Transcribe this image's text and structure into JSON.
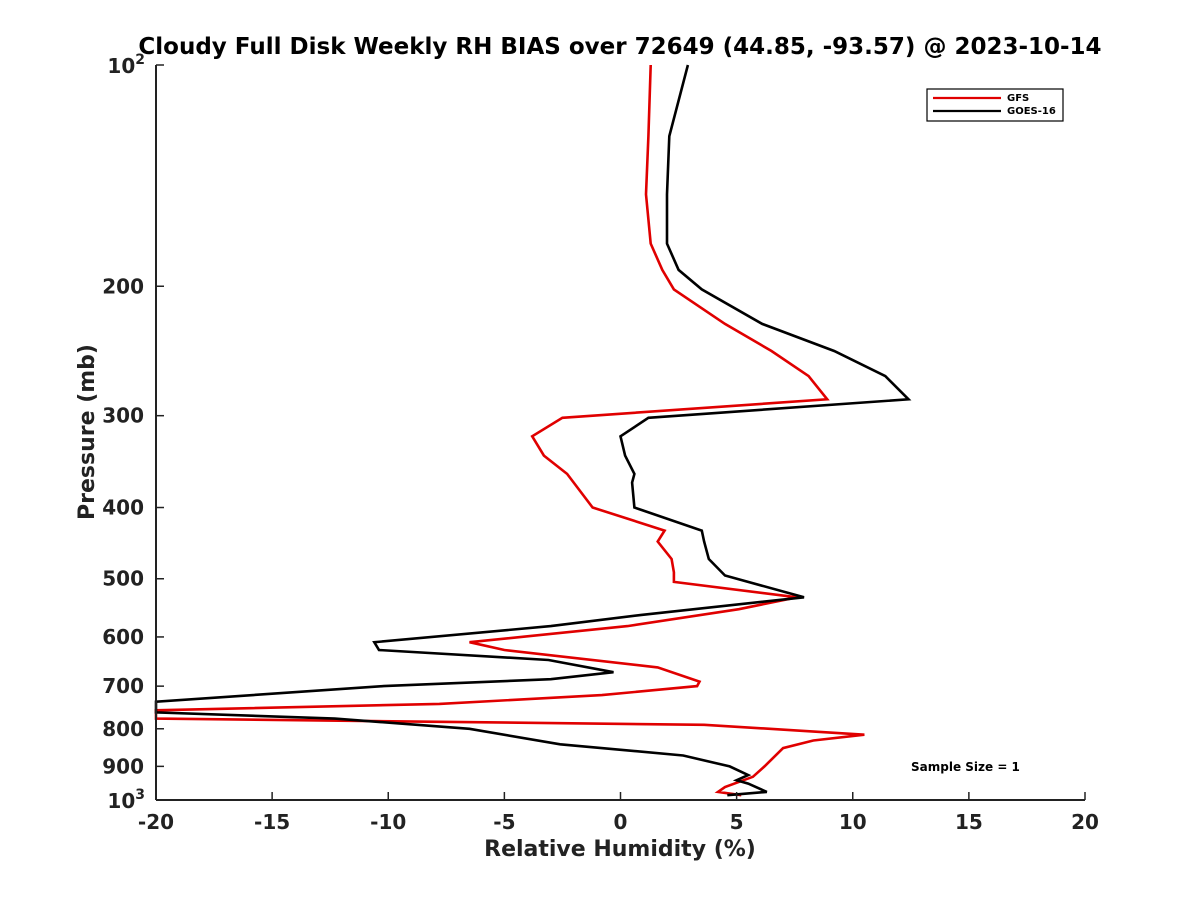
{
  "chart_data": {
    "type": "line",
    "title": "Cloudy Full Disk Weekly RH BIAS over 72649 (44.85, -93.57) @ 2023-10-14",
    "xlabel": "Relative Humidity (%)",
    "ylabel": "Pressure (mb)",
    "xlim": [
      -20,
      20
    ],
    "ylim": [
      100,
      1000
    ],
    "y_scale": "log",
    "y_reversed": true,
    "x_ticks": [
      -20,
      -15,
      -10,
      -5,
      0,
      5,
      10,
      15,
      20
    ],
    "x_tick_labels": [
      "-20",
      "-15",
      "-10",
      "-5",
      "0",
      "5",
      "10",
      "15",
      "20"
    ],
    "y_ticks": [
      {
        "value": 100,
        "base": "10",
        "exp": "2",
        "label": ""
      },
      {
        "value": 200,
        "label": "200"
      },
      {
        "value": 300,
        "label": "300"
      },
      {
        "value": 400,
        "label": "400"
      },
      {
        "value": 500,
        "label": "500"
      },
      {
        "value": 600,
        "label": "600"
      },
      {
        "value": 700,
        "label": "700"
      },
      {
        "value": 800,
        "label": "800"
      },
      {
        "value": 900,
        "label": "900"
      },
      {
        "value": 1000,
        "base": "10",
        "exp": "3",
        "label": ""
      }
    ],
    "grid": false,
    "legend_position": "top-right",
    "annotation": "Sample Size = 1",
    "series": [
      {
        "name": "GFS",
        "color": "#e00000",
        "points": [
          [
            1.3,
            100
          ],
          [
            1.2,
            125
          ],
          [
            1.1,
            150
          ],
          [
            1.3,
            175
          ],
          [
            1.8,
            190
          ],
          [
            2.3,
            202
          ],
          [
            4.5,
            225
          ],
          [
            6.5,
            245
          ],
          [
            8.1,
            265
          ],
          [
            8.9,
            285
          ],
          [
            -2.5,
            302
          ],
          [
            -3.8,
            320
          ],
          [
            -3.3,
            340
          ],
          [
            -2.3,
            360
          ],
          [
            -1.2,
            400
          ],
          [
            1.9,
            430
          ],
          [
            1.6,
            445
          ],
          [
            2.2,
            470
          ],
          [
            2.3,
            490
          ],
          [
            2.3,
            505
          ],
          [
            7.6,
            530
          ],
          [
            5.1,
            550
          ],
          [
            0.3,
            580
          ],
          [
            -6.5,
            610
          ],
          [
            -5.0,
            625
          ],
          [
            1.6,
            660
          ],
          [
            3.4,
            690
          ],
          [
            3.3,
            700
          ],
          [
            -0.8,
            720
          ],
          [
            -7.8,
            740
          ],
          [
            -20,
            755
          ],
          [
            -20,
            765
          ],
          [
            -20,
            775
          ],
          [
            3.6,
            790
          ],
          [
            7.8,
            805
          ],
          [
            10.5,
            815
          ],
          [
            8.3,
            830
          ],
          [
            7.0,
            850
          ],
          [
            6.2,
            900
          ],
          [
            5.7,
            930
          ],
          [
            4.5,
            960
          ],
          [
            4.2,
            975
          ],
          [
            5.2,
            985
          ]
        ]
      },
      {
        "name": "GOES-16",
        "color": "#000000",
        "points": [
          [
            2.9,
            100
          ],
          [
            2.1,
            125
          ],
          [
            2.0,
            150
          ],
          [
            2.0,
            175
          ],
          [
            2.5,
            190
          ],
          [
            3.5,
            202
          ],
          [
            6.1,
            225
          ],
          [
            9.2,
            245
          ],
          [
            11.4,
            265
          ],
          [
            12.4,
            285
          ],
          [
            1.2,
            302
          ],
          [
            0.0,
            320
          ],
          [
            0.2,
            340
          ],
          [
            0.6,
            360
          ],
          [
            0.5,
            370
          ],
          [
            0.6,
            400
          ],
          [
            3.5,
            430
          ],
          [
            3.6,
            445
          ],
          [
            3.8,
            470
          ],
          [
            4.5,
            495
          ],
          [
            7.9,
            530
          ],
          [
            0.9,
            560
          ],
          [
            -3.0,
            580
          ],
          [
            -10.6,
            610
          ],
          [
            -10.4,
            625
          ],
          [
            -3.1,
            645
          ],
          [
            -0.3,
            670
          ],
          [
            -3.0,
            685
          ],
          [
            -10.2,
            700
          ],
          [
            -20,
            735
          ],
          [
            -20,
            760
          ],
          [
            -12.3,
            775
          ],
          [
            -6.5,
            800
          ],
          [
            -2.6,
            840
          ],
          [
            2.7,
            870
          ],
          [
            4.7,
            900
          ],
          [
            5.5,
            925
          ],
          [
            5.0,
            940
          ],
          [
            5.5,
            950
          ],
          [
            6.3,
            975
          ],
          [
            4.6,
            985
          ]
        ]
      }
    ]
  }
}
